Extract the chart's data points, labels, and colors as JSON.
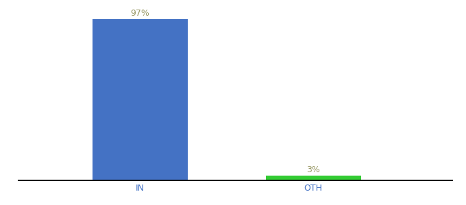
{
  "categories": [
    "IN",
    "OTH"
  ],
  "values": [
    97,
    3
  ],
  "bar_colors": [
    "#4472c4",
    "#33cc33"
  ],
  "label_color": "#999966",
  "ylim": [
    0,
    105
  ],
  "background_color": "#ffffff",
  "axis_line_color": "#111111",
  "label_fontsize": 9,
  "tick_fontsize": 9,
  "tick_color": "#4472c4",
  "bar_width": 0.55,
  "x_positions": [
    1,
    2
  ],
  "xlim": [
    0.3,
    2.8
  ]
}
